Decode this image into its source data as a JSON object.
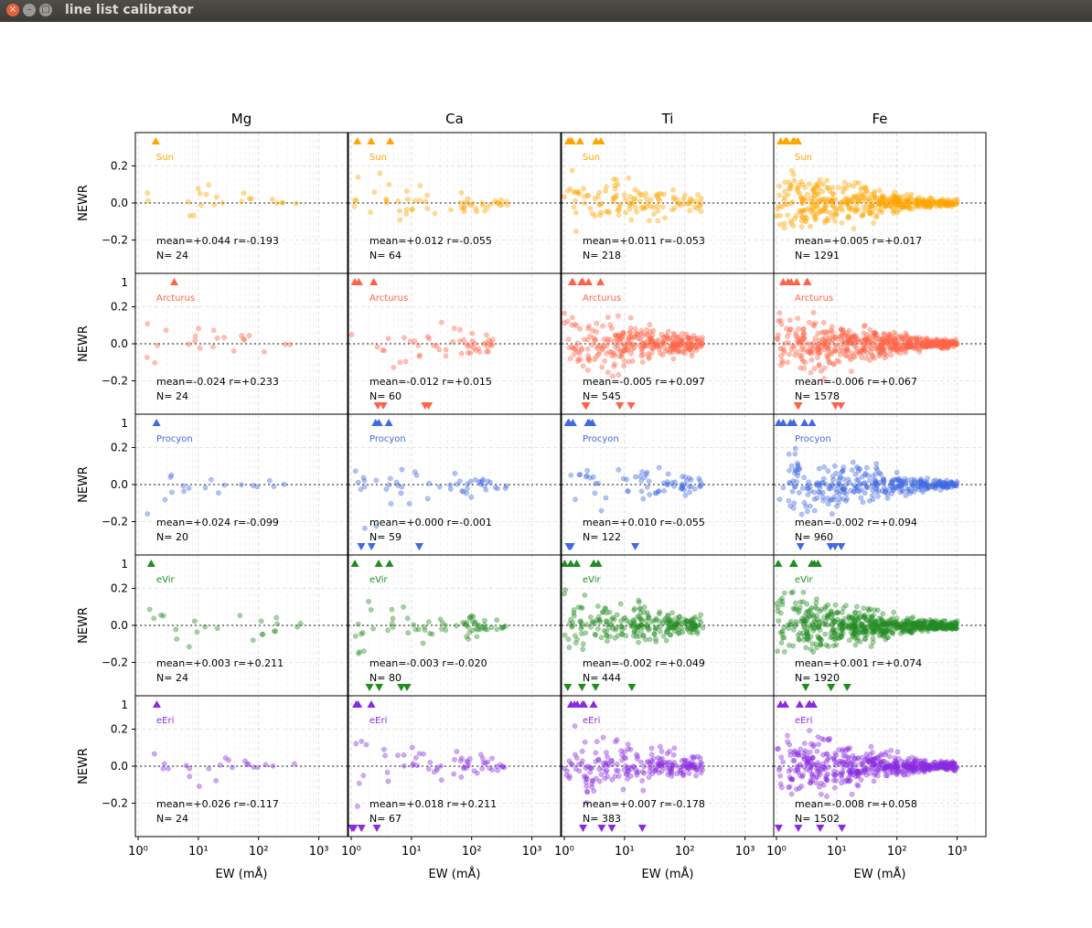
{
  "window": {
    "title": "line list calibrator",
    "close_glyph": "×",
    "minimize_glyph": "–",
    "maximize_glyph": "□"
  },
  "chart_data": {
    "type": "scatter",
    "layout": "5 rows x 4 columns small multiples",
    "columns": [
      "Mg",
      "Ca",
      "Ti",
      "Fe"
    ],
    "xlabel": "EW (mÅ)",
    "x_scale": "log",
    "xlim": [
      0.9,
      3000
    ],
    "x_ticks": [
      {
        "v": 1,
        "label": "10⁰"
      },
      {
        "v": 10,
        "label": "10¹"
      },
      {
        "v": 100,
        "label": "10²"
      },
      {
        "v": 1000,
        "label": "10³"
      }
    ],
    "ylabel": "NEWR",
    "ylim": [
      -0.38,
      0.38
    ],
    "y_ticks": [
      {
        "v": -0.2,
        "label": "−0.2"
      },
      {
        "v": 0,
        "label": "0.0"
      },
      {
        "v": 0.2,
        "label": "0.2"
      }
    ],
    "upper_tick_label": "1",
    "grid": true,
    "reference_line": 0.0,
    "rows": [
      {
        "star": "Sun",
        "color": "#ffa500",
        "panels": [
          {
            "element": "Mg",
            "mean": "+0.044",
            "r": "+0.193",
            "r_sign": "-",
            "N": "24"
          },
          {
            "element": "Ca",
            "mean": "+0.012",
            "r": "+0.055",
            "r_sign": "-",
            "N": "64"
          },
          {
            "element": "Ti",
            "mean": "+0.011",
            "r": "+0.053",
            "r_sign": "-",
            "N": "218"
          },
          {
            "element": "Fe",
            "mean": "+0.005",
            "r": "+0.017",
            "r_sign": "+",
            "N": "1291"
          }
        ]
      },
      {
        "star": "Arcturus",
        "color": "#ff6347",
        "panels": [
          {
            "element": "Mg",
            "mean": "-0.024",
            "r": "+0.233",
            "r_sign": "+",
            "N": "24"
          },
          {
            "element": "Ca",
            "mean": "-0.012",
            "r": "+0.015",
            "r_sign": "+",
            "N": "60"
          },
          {
            "element": "Ti",
            "mean": "-0.005",
            "r": "+0.097",
            "r_sign": "+",
            "N": "545"
          },
          {
            "element": "Fe",
            "mean": "-0.006",
            "r": "+0.067",
            "r_sign": "+",
            "N": "1578"
          }
        ]
      },
      {
        "star": "Procyon",
        "color": "#4169e1",
        "panels": [
          {
            "element": "Mg",
            "mean": "+0.024",
            "r": "-0.099",
            "r_sign": "-",
            "N": "20"
          },
          {
            "element": "Ca",
            "mean": "+0.000",
            "r": "-0.001",
            "r_sign": "-",
            "N": "59"
          },
          {
            "element": "Ti",
            "mean": "+0.010",
            "r": "-0.055",
            "r_sign": "-",
            "N": "122"
          },
          {
            "element": "Fe",
            "mean": "-0.002",
            "r": "+0.094",
            "r_sign": "+",
            "N": "960"
          }
        ]
      },
      {
        "star": "eVir",
        "color": "#228b22",
        "panels": [
          {
            "element": "Mg",
            "mean": "+0.003",
            "r": "+0.211",
            "r_sign": "+",
            "N": "24"
          },
          {
            "element": "Ca",
            "mean": "-0.003",
            "r": "-0.020",
            "r_sign": "-",
            "N": "80"
          },
          {
            "element": "Ti",
            "mean": "-0.002",
            "r": "+0.049",
            "r_sign": "+",
            "N": "444"
          },
          {
            "element": "Fe",
            "mean": "+0.001",
            "r": "+0.074",
            "r_sign": "+",
            "N": "1920"
          }
        ]
      },
      {
        "star": "eEri",
        "color": "#8a2be2",
        "panels": [
          {
            "element": "Mg",
            "mean": "+0.026",
            "r": "-0.117",
            "r_sign": "-",
            "N": "24"
          },
          {
            "element": "Ca",
            "mean": "+0.018",
            "r": "+0.211",
            "r_sign": "+",
            "N": "67"
          },
          {
            "element": "Ti",
            "mean": "+0.007",
            "r": "-0.178",
            "r_sign": "-",
            "N": "383"
          },
          {
            "element": "Fe",
            "mean": "-0.008",
            "r": "+0.058",
            "r_sign": "+",
            "N": "1502"
          }
        ]
      }
    ],
    "stat_text": {
      "Sun": [
        "mean=+0.044   r=-0.193",
        "mean=+0.012    r=-0.055",
        "mean=+0.011    r=-0.053",
        "mean=+0.005     r=+0.017"
      ],
      "Arcturus": [
        "mean=-0.024     r=+0.233",
        "mean=-0.012     r=+0.015",
        "mean=-0.005     r=+0.097",
        "mean=-0.006     r=+0.067"
      ],
      "Procyon": [
        "mean=+0.024    r=-0.099",
        "mean=+0.000    r=-0.001",
        "mean=+0.010    r=-0.055",
        "mean=-0.002     r=+0.094"
      ],
      "eVir": [
        "mean=+0.003    r=+0.211",
        "mean=-0.003     r=-0.020",
        "mean=-0.002     r=+0.049",
        "mean=+0.001    r=+0.074"
      ],
      "eEri": [
        "mean=+0.026    r=-0.117",
        "mean=+0.018    r=+0.211",
        "mean=+0.007    r=-0.178",
        "mean=-0.008     r=+0.058"
      ]
    },
    "n_text": {
      "Sun": [
        "N=  24",
        "N=  64",
        "N= 218",
        "N= 1291"
      ],
      "Arcturus": [
        "N=  24",
        "N=  60",
        "N= 545",
        "N= 1578"
      ],
      "Procyon": [
        "N=  20",
        "N=  59",
        "N= 122",
        "N= 960"
      ],
      "eVir": [
        "N=  24",
        "N=  80",
        "N= 444",
        "N= 1920"
      ],
      "eEri": [
        "N=  24",
        "N=  67",
        "N= 383",
        "N= 1502"
      ]
    },
    "series_note": "points are individual spectral lines; triangles mark out-of-range residuals"
  }
}
